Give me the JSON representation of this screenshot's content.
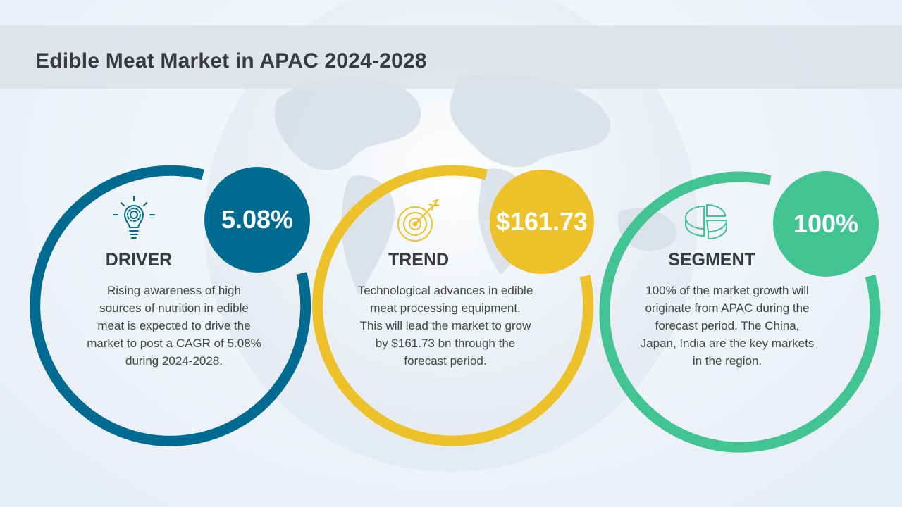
{
  "title": "Edible Meat Market in APAC 2024-2028",
  "colors": {
    "driver": "#006b91",
    "trend": "#ecc12a",
    "segment": "#41c393"
  },
  "cards": [
    {
      "label": "DRIVER",
      "stat": "5.08%",
      "icon": "lightbulb-gear-icon",
      "description": "Rising awareness of high sources of nutrition in edible meat is expected to drive the market to post a CAGR of 5.08% during 2024-2028."
    },
    {
      "label": "TREND",
      "stat": "$161.73",
      "icon": "target-arrow-icon",
      "description": "Technological advances in edible meat processing equipment. This will lead the market to grow by $161.73 bn through the forecast period."
    },
    {
      "label": "SEGMENT",
      "stat": "100%",
      "icon": "pie-chart-icon",
      "description": "100% of the market growth will originate from APAC during the forecast period. The China, Japan, India are the key markets in the region."
    }
  ]
}
